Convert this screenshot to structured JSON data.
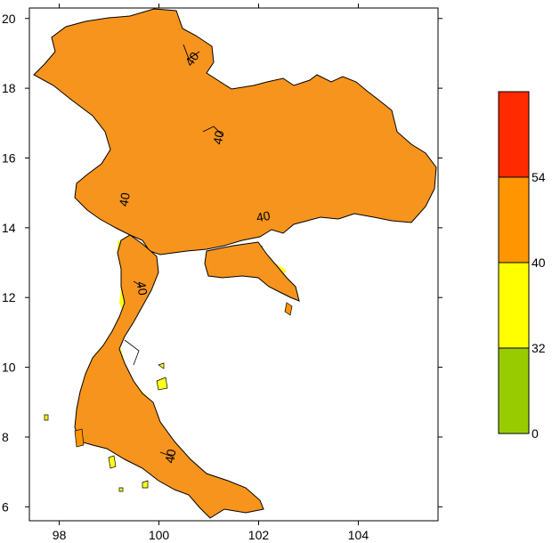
{
  "map": {
    "x_ticks": [
      "98",
      "100",
      "102",
      "104"
    ],
    "y_ticks": [
      "20",
      "18",
      "16",
      "14",
      "12",
      "10",
      "8",
      "6"
    ],
    "contour_label": "40",
    "x_range": [
      97.4,
      105.6
    ],
    "y_range": [
      5.6,
      20.3
    ]
  },
  "legend": {
    "labels": [
      "54",
      "40",
      "32",
      "0"
    ],
    "colors": [
      "#ff2a00",
      "#ff9500",
      "#ffff00",
      "#99cc00"
    ]
  },
  "fills": {
    "orange": "#f7941d",
    "yellow": "#ffff1a",
    "boundary": "#000000"
  }
}
